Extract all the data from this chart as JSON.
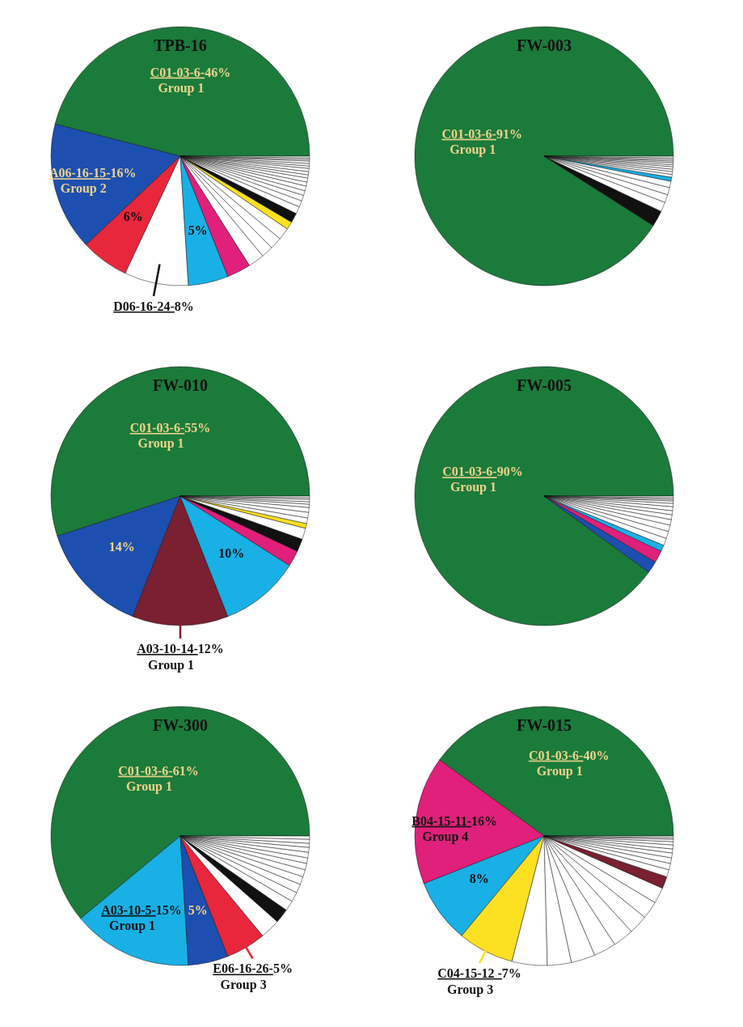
{
  "chart_data": [
    {
      "type": "pie",
      "title": "TPB-16",
      "categories": [
        "C01-03-6-",
        "A06-16-15-",
        null,
        "D06-16-24-",
        null,
        null,
        null,
        null,
        null,
        null,
        null,
        null,
        null,
        null,
        null,
        null,
        null,
        null,
        null,
        null,
        null,
        null,
        null,
        null,
        null,
        null,
        null,
        null
      ],
      "values": [
        46,
        16,
        6,
        8,
        5,
        3,
        2,
        1.5,
        1.5,
        1.5,
        1,
        1.2,
        0.9,
        0.8,
        0.7,
        0.6,
        0.6,
        0.5,
        0.5,
        0.4,
        0.4,
        0.4,
        0.3,
        0.3,
        0.3,
        0.2,
        0.2,
        0.2
      ],
      "colors": [
        "#1b7b3b",
        "#1d4fb0",
        "#e8263c",
        "#ffffff",
        "#19b0e6",
        "#e0207a",
        "#ffffff",
        "#ffffff",
        "#ffffff",
        "#ffffff",
        "#fde021",
        "#111111",
        "#ffffff",
        "#ffffff",
        "#ffffff",
        "#ffffff",
        "#ffffff",
        "#ffffff",
        "#ffffff",
        "#ffffff",
        "#ffffff",
        "#ffffff",
        "#ffffff",
        "#ffffff",
        "#ffffff",
        "#ffffff",
        "#ffffff",
        "#ffffff"
      ],
      "value_labels": [
        "46%",
        "16%",
        "6%",
        "8%",
        "5%",
        null,
        null,
        null,
        null,
        null,
        null,
        null,
        null,
        null,
        null,
        null,
        null,
        null,
        null,
        null,
        null,
        null,
        null,
        null,
        null,
        null,
        null,
        null
      ],
      "annotations": [
        {
          "text": "Group 1",
          "x": "C01-03-6-"
        },
        {
          "text": "Group 2",
          "x": "A06-16-15-"
        }
      ]
    },
    {
      "type": "pie",
      "title": "FW-003",
      "categories": [
        "C01-03-6-",
        null,
        null,
        null,
        null,
        null,
        null,
        null,
        null,
        null,
        null,
        null,
        null,
        null,
        null,
        null,
        null
      ],
      "values": [
        91,
        2,
        1.2,
        1,
        0.9,
        0.8,
        0.5,
        0.35,
        0.35,
        0.3,
        0.3,
        0.25,
        0.25,
        0.2,
        0.2,
        0.2,
        0.2
      ],
      "colors": [
        "#1b7b3b",
        "#111111",
        "#ffffff",
        "#ffffff",
        "#ffffff",
        "#ffffff",
        "#19b0e6",
        "#ffffff",
        "#ffffff",
        "#ffffff",
        "#ffffff",
        "#ffffff",
        "#ffffff",
        "#ffffff",
        "#ffffff",
        "#ffffff",
        "#ffffff"
      ],
      "value_labels": [
        "91%",
        null,
        null,
        null,
        null,
        null,
        null,
        null,
        null,
        null,
        null,
        null,
        null,
        null,
        null,
        null,
        null
      ],
      "annotations": [
        {
          "text": "Group 1",
          "x": "C01-03-6-"
        }
      ]
    },
    {
      "type": "pie",
      "title": "FW-010",
      "categories": [
        "C01-03-6-",
        null,
        "A03-10-14-",
        null,
        null,
        null,
        null,
        null,
        null,
        null,
        null,
        null,
        null,
        null,
        null,
        null
      ],
      "values": [
        55,
        14,
        12,
        10,
        2,
        1.6,
        1.4,
        0.6,
        0.7,
        0.7,
        0.6,
        0.4,
        0.3,
        0.3,
        0.2,
        0.2
      ],
      "colors": [
        "#1b7b3b",
        "#1d4fb0",
        "#7a2030",
        "#19b0e6",
        "#e0207a",
        "#111111",
        "#ffffff",
        "#fde021",
        "#ffffff",
        "#ffffff",
        "#ffffff",
        "#ffffff",
        "#ffffff",
        "#ffffff",
        "#ffffff",
        "#ffffff"
      ],
      "value_labels": [
        "55%",
        "14%",
        "12%",
        "10%",
        null,
        null,
        null,
        null,
        null,
        null,
        null,
        null,
        null,
        null,
        null,
        null
      ],
      "annotations": [
        {
          "text": "Group 1",
          "x": "C01-03-6-"
        },
        {
          "text": "Group 1",
          "x": "A03-10-14-"
        }
      ]
    },
    {
      "type": "pie",
      "title": "FW-005",
      "categories": [
        "C01-03-6-",
        null,
        null,
        null,
        null,
        null,
        null,
        null,
        null,
        null,
        null,
        null,
        null,
        null,
        null,
        null
      ],
      "values": [
        90,
        1.5,
        1.5,
        0.8,
        0.9,
        0.9,
        0.8,
        0.7,
        0.6,
        0.5,
        0.5,
        0.4,
        0.3,
        0.2,
        0.2,
        0.2
      ],
      "colors": [
        "#1b7b3b",
        "#1d4fb0",
        "#e0207a",
        "#19b0e6",
        "#ffffff",
        "#ffffff",
        "#ffffff",
        "#ffffff",
        "#ffffff",
        "#ffffff",
        "#ffffff",
        "#ffffff",
        "#ffffff",
        "#ffffff",
        "#ffffff",
        "#ffffff"
      ],
      "value_labels": [
        "90%",
        null,
        null,
        null,
        null,
        null,
        null,
        null,
        null,
        null,
        null,
        null,
        null,
        null,
        null,
        null
      ],
      "annotations": [
        {
          "text": "Group 1",
          "x": "C01-03-6-"
        }
      ]
    },
    {
      "type": "pie",
      "title": "FW-300",
      "categories": [
        "C01-03-6-",
        "A03-10-5-",
        null,
        "E06-16-26-",
        null,
        null,
        null,
        null,
        null,
        null,
        null,
        null,
        null,
        null,
        null,
        null,
        null,
        null
      ],
      "values": [
        61,
        15,
        5,
        5,
        2.5,
        1.8,
        1.3,
        1.2,
        1.1,
        1.0,
        0.9,
        0.8,
        0.7,
        0.7,
        0.6,
        0.5,
        0.5,
        0.4
      ],
      "colors": [
        "#1b7b3b",
        "#19b0e6",
        "#1d4fb0",
        "#e8263c",
        "#ffffff",
        "#111111",
        "#ffffff",
        "#ffffff",
        "#ffffff",
        "#ffffff",
        "#ffffff",
        "#ffffff",
        "#ffffff",
        "#ffffff",
        "#ffffff",
        "#ffffff",
        "#ffffff",
        "#ffffff"
      ],
      "value_labels": [
        "61%",
        "15%",
        "5%",
        "5%",
        null,
        null,
        null,
        null,
        null,
        null,
        null,
        null,
        null,
        null,
        null,
        null,
        null,
        null
      ],
      "annotations": [
        {
          "text": "Group 1",
          "x": "C01-03-6-"
        },
        {
          "text": "Group 1",
          "x": "A03-10-5-"
        },
        {
          "text": "Group 3",
          "x": "E06-16-26-"
        }
      ]
    },
    {
      "type": "pie",
      "title": "FW-015",
      "categories": [
        "C01-03-6-",
        "B04-15-11-",
        null,
        "C04-15-12 -",
        null,
        null,
        null,
        null,
        null,
        null,
        null,
        null,
        null,
        null,
        null,
        null,
        null,
        null,
        null,
        null,
        null,
        null,
        null
      ],
      "values": [
        40,
        16,
        8,
        7,
        4.4,
        3,
        3,
        2.8,
        2.6,
        2.4,
        2.2,
        2,
        1.5,
        0.9,
        0.8,
        0.7,
        0.6,
        0.5,
        0.5,
        0.4,
        0.3,
        0.2,
        0.2
      ],
      "colors": [
        "#1b7b3b",
        "#e0207a",
        "#19b0e6",
        "#fde021",
        "#ffffff",
        "#ffffff",
        "#ffffff",
        "#ffffff",
        "#ffffff",
        "#ffffff",
        "#ffffff",
        "#ffffff",
        "#7a2030",
        "#ffffff",
        "#ffffff",
        "#ffffff",
        "#ffffff",
        "#ffffff",
        "#ffffff",
        "#ffffff",
        "#ffffff",
        "#ffffff",
        "#ffffff"
      ],
      "value_labels": [
        "40%",
        "16%",
        "8%",
        "7%",
        null,
        null,
        null,
        null,
        null,
        null,
        null,
        null,
        null,
        null,
        null,
        null,
        null,
        null,
        null,
        null,
        null,
        null,
        null
      ],
      "annotations": [
        {
          "text": "Group 1",
          "x": "C01-03-6-"
        },
        {
          "text": "Group 4",
          "x": "B04-15-11-"
        },
        {
          "text": "Group 3",
          "x": "C04-15-12 -"
        }
      ]
    }
  ]
}
